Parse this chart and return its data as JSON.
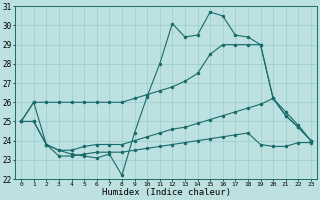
{
  "bg_color": "#bde0e0",
  "line_color": "#1a6b6b",
  "xlim_min": -0.5,
  "xlim_max": 23.5,
  "ylim_min": 22,
  "ylim_max": 31,
  "xticks": [
    0,
    1,
    2,
    3,
    4,
    5,
    6,
    7,
    8,
    9,
    10,
    11,
    12,
    13,
    14,
    15,
    16,
    17,
    18,
    19,
    20,
    21,
    22,
    23
  ],
  "yticks": [
    22,
    23,
    24,
    25,
    26,
    27,
    28,
    29,
    30,
    31
  ],
  "xlabel": "Humidex (Indice chaleur)",
  "line1_y": [
    25.0,
    26.0,
    23.8,
    23.5,
    23.3,
    23.2,
    23.1,
    23.3,
    22.2,
    24.4,
    26.3,
    28.0,
    30.1,
    29.4,
    29.5,
    30.7,
    30.5,
    29.5,
    29.4,
    29.0,
    26.2,
    25.3,
    24.7,
    24.0
  ],
  "line2_y": [
    25.0,
    26.0,
    26.0,
    26.0,
    26.0,
    26.0,
    26.0,
    26.0,
    26.0,
    26.2,
    26.4,
    26.6,
    26.8,
    27.1,
    27.5,
    28.5,
    29.0,
    29.0,
    29.0,
    29.0,
    26.2,
    25.3,
    24.7,
    24.0
  ],
  "line3_y": [
    25.0,
    25.0,
    23.8,
    23.5,
    23.5,
    23.7,
    23.8,
    23.8,
    23.8,
    24.0,
    24.2,
    24.4,
    24.6,
    24.7,
    24.9,
    25.1,
    25.3,
    25.5,
    25.7,
    25.9,
    26.2,
    25.5,
    24.8,
    24.0
  ],
  "line4_y": [
    25.0,
    25.0,
    23.8,
    23.2,
    23.2,
    23.3,
    23.4,
    23.4,
    23.4,
    23.5,
    23.6,
    23.7,
    23.8,
    23.9,
    24.0,
    24.1,
    24.2,
    24.3,
    24.4,
    23.8,
    23.7,
    23.7,
    23.9,
    23.9
  ]
}
